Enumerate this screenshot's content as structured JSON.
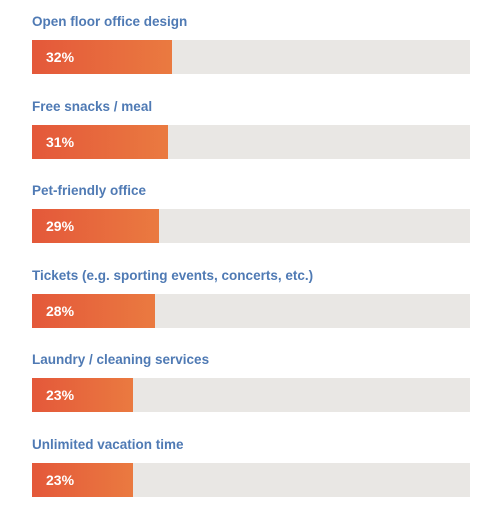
{
  "chart_data": {
    "type": "bar",
    "orientation": "horizontal",
    "categories": [
      "Open floor office design",
      "Free snacks / meal",
      "Pet-friendly office",
      "Tickets (e.g. sporting events, concerts, etc.)",
      "Laundry / cleaning services",
      "Unlimited vacation time"
    ],
    "values": [
      32,
      31,
      29,
      28,
      23,
      23
    ],
    "value_labels": [
      "32%",
      "31%",
      "29%",
      "28%",
      "23%",
      "23%"
    ],
    "xlim": [
      0,
      100
    ],
    "grid": false,
    "legend": "none",
    "colors": {
      "bar": "#e4583a",
      "bar_end": "#ea7a40",
      "track": "#e9e7e4",
      "label": "#4f7ab4",
      "value_text": "#ffffff"
    }
  }
}
